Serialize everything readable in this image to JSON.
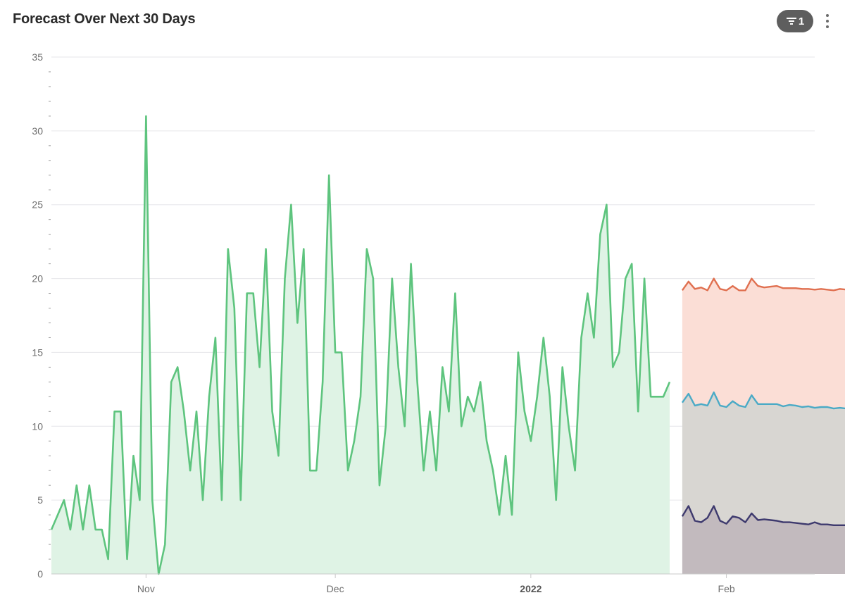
{
  "header": {
    "title": "Forecast Over Next 30 Days",
    "filter_count": "1",
    "filter_icon": "filter-icon",
    "menu_icon": "kebab-menu-icon"
  },
  "chart_data": {
    "type": "area",
    "title": "Forecast Over Next 30 Days",
    "xlabel": "",
    "ylabel": "",
    "ylim": [
      0,
      35
    ],
    "yticks": [
      0,
      5,
      10,
      15,
      20,
      25,
      30,
      35
    ],
    "x_range": [
      "2021-10-17",
      "2022-02-15"
    ],
    "xticks": [
      {
        "date": "2021-11-01",
        "label": "Nov",
        "bold": false
      },
      {
        "date": "2021-12-01",
        "label": "Dec",
        "bold": false
      },
      {
        "date": "2022-01-01",
        "label": "2022",
        "bold": true
      },
      {
        "date": "2022-02-01",
        "label": "Feb",
        "bold": false
      }
    ],
    "grid": true,
    "colors": {
      "actual": "#5ec47e",
      "actual_fill": "#dff3e5",
      "upper": "#e07050",
      "upper_fill": "#fbded6",
      "mean": "#4aaac6",
      "mean_fill": "#d8d6d2",
      "lower": "#3e3a6e",
      "lower_fill": "#c2babe"
    },
    "series": [
      {
        "role": "actual",
        "start": "2021-10-17",
        "values": [
          3,
          4,
          5,
          3,
          6,
          3,
          6,
          3,
          3,
          1,
          11,
          11,
          1,
          8,
          5,
          31,
          5,
          0,
          2,
          13,
          14,
          11,
          7,
          11,
          5,
          12,
          16,
          5,
          22,
          18,
          5,
          19,
          19,
          14,
          22,
          11,
          8,
          20,
          25,
          17,
          22,
          7,
          7,
          13,
          27,
          15,
          15,
          7,
          9,
          12,
          22,
          20,
          6,
          10,
          20,
          14,
          10,
          21,
          13,
          7,
          11,
          7,
          14,
          11,
          19,
          10,
          12,
          11,
          13,
          9,
          7,
          4,
          8,
          4,
          15,
          11,
          9,
          12,
          16,
          12,
          5,
          14,
          10,
          7,
          16,
          19,
          16,
          23,
          25,
          14,
          15,
          20,
          21,
          11,
          20,
          12,
          12,
          12,
          13
        ]
      },
      {
        "role": "upper",
        "start": "2022-01-25",
        "values": [
          19.2,
          19.8,
          19.3,
          19.4,
          19.2,
          20.0,
          19.3,
          19.2,
          19.5,
          19.2,
          19.2,
          20.0,
          19.5,
          19.4,
          19.45,
          19.5,
          19.35,
          19.35,
          19.35,
          19.3,
          19.3,
          19.25,
          19.3,
          19.25,
          19.2,
          19.3,
          19.25,
          19.25,
          19.2,
          19.2
        ]
      },
      {
        "role": "mean",
        "start": "2022-01-25",
        "values": [
          11.6,
          12.2,
          11.4,
          11.5,
          11.4,
          12.3,
          11.4,
          11.3,
          11.7,
          11.4,
          11.3,
          12.1,
          11.5,
          11.5,
          11.5,
          11.5,
          11.35,
          11.45,
          11.4,
          11.3,
          11.35,
          11.25,
          11.3,
          11.3,
          11.2,
          11.25,
          11.2,
          11.25,
          11.2,
          11.2
        ]
      },
      {
        "role": "lower",
        "start": "2022-01-25",
        "values": [
          3.9,
          4.6,
          3.6,
          3.5,
          3.8,
          4.6,
          3.6,
          3.4,
          3.9,
          3.8,
          3.5,
          4.1,
          3.65,
          3.7,
          3.65,
          3.6,
          3.5,
          3.5,
          3.45,
          3.4,
          3.35,
          3.5,
          3.35,
          3.35,
          3.3,
          3.3,
          3.3,
          3.3,
          3.25,
          3.3
        ]
      }
    ]
  }
}
